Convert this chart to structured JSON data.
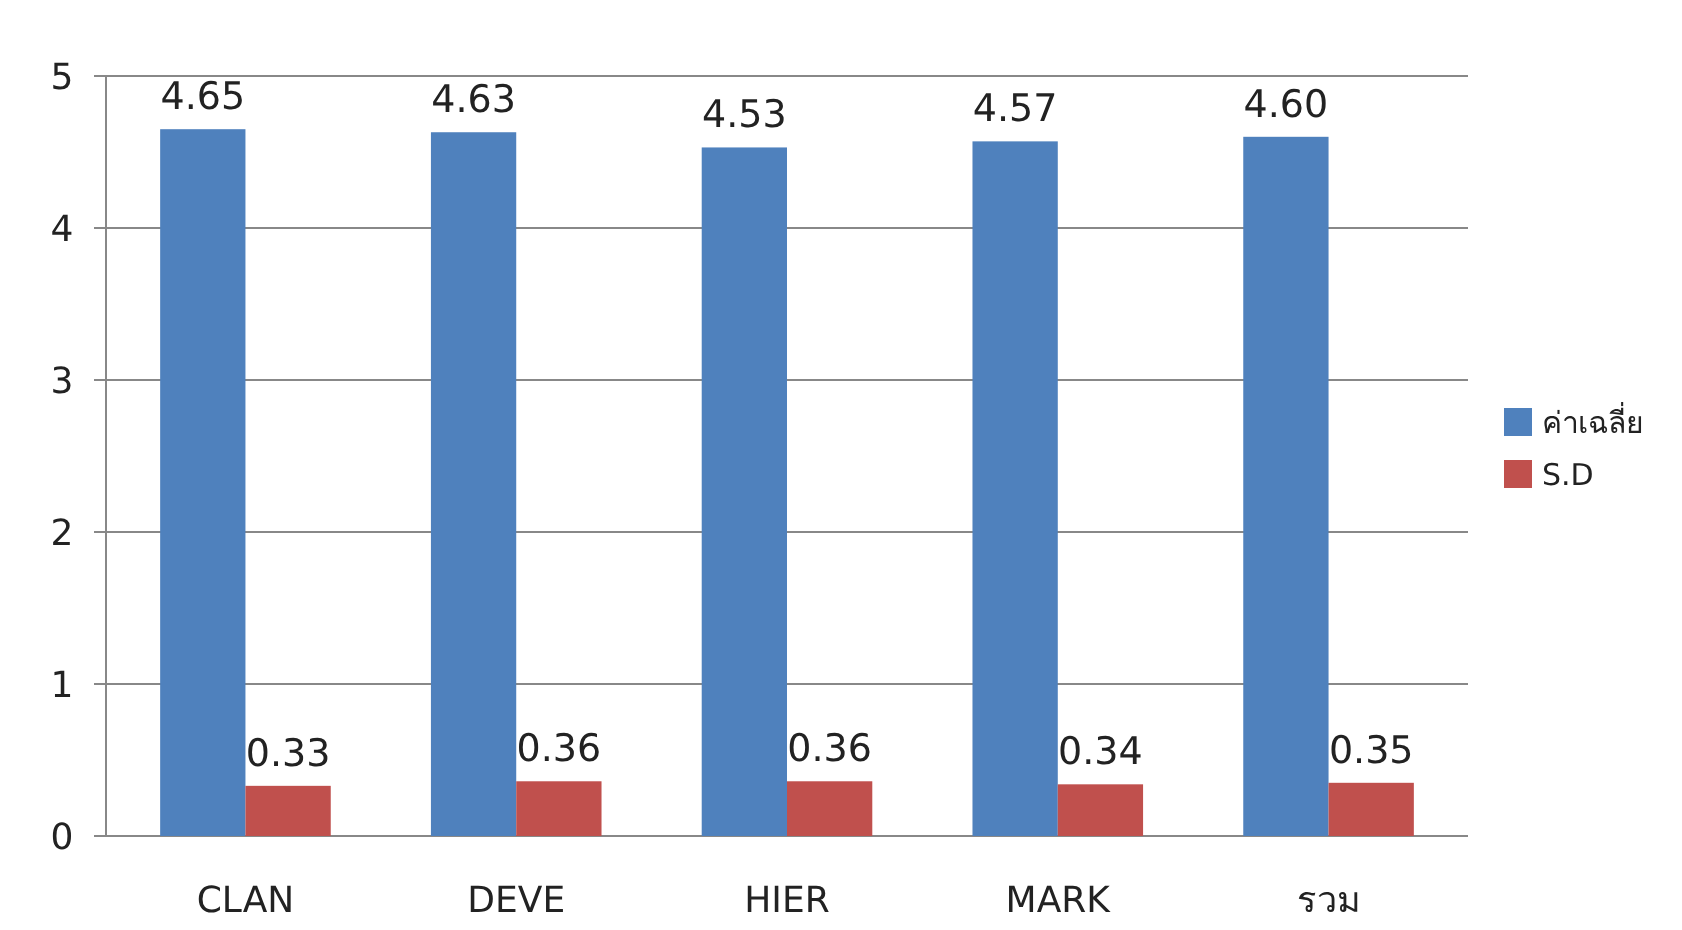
{
  "chart_data": {
    "type": "bar",
    "categories": [
      "CLAN",
      "DEVE",
      "HIER",
      "MARK",
      "รวม"
    ],
    "series": [
      {
        "name": "ค่าเฉลี่ย",
        "color": "#4f81bd",
        "values": [
          4.65,
          4.63,
          4.53,
          4.57,
          4.6
        ],
        "value_labels": [
          "4.65",
          "4.63",
          "4.53",
          "4.57",
          "4.60"
        ]
      },
      {
        "name": "S.D",
        "color": "#c0504d",
        "values": [
          0.33,
          0.36,
          0.36,
          0.34,
          0.35
        ],
        "value_labels": [
          "0.33",
          "0.36",
          "0.36",
          "0.34",
          "0.35"
        ]
      }
    ],
    "ylim": [
      0,
      5
    ],
    "yticks": [
      0,
      1,
      2,
      3,
      4,
      5
    ],
    "grid": "y",
    "legend": "right"
  }
}
